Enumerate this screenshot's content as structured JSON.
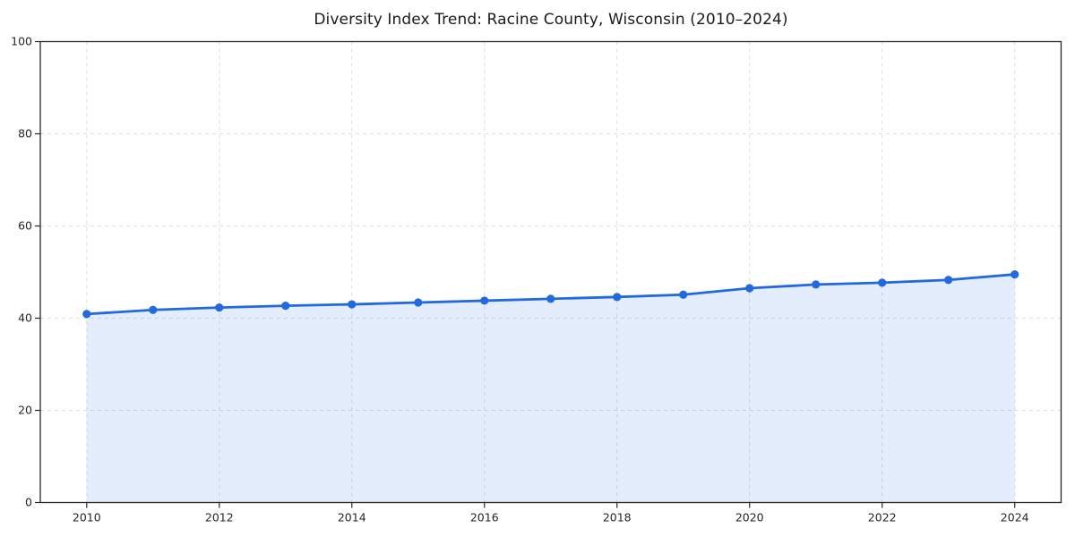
{
  "figure": {
    "background_color": "#ffffff"
  },
  "chart_data": {
    "type": "line",
    "title": "Diversity Index Trend: Racine County, Wisconsin (2010–2024)",
    "xlabel": "",
    "ylabel": "",
    "x": [
      2010,
      2011,
      2012,
      2013,
      2014,
      2015,
      2016,
      2017,
      2018,
      2019,
      2020,
      2021,
      2022,
      2023,
      2024
    ],
    "series": [
      {
        "name": "Diversity Index",
        "values": [
          40.9,
          41.8,
          42.3,
          42.7,
          43.0,
          43.4,
          43.8,
          44.2,
          44.6,
          45.1,
          46.5,
          47.3,
          47.7,
          48.3,
          49.5
        ]
      }
    ],
    "xlim": [
      2009.3,
      2024.7
    ],
    "ylim": [
      0,
      100
    ],
    "xticks": [
      2010,
      2012,
      2014,
      2016,
      2018,
      2020,
      2022,
      2024
    ],
    "yticks": [
      0,
      20,
      40,
      60,
      80,
      100
    ],
    "grid": true,
    "grid_style": "dashed",
    "legend_position": "none",
    "marker": "circle",
    "area_fill": true,
    "colors": {
      "line": "#2268df",
      "fill": "rgba(34, 104, 223, 0.12)",
      "grid": "#dcdcdc",
      "axis": "#262626",
      "tick_text": "#262626"
    }
  }
}
